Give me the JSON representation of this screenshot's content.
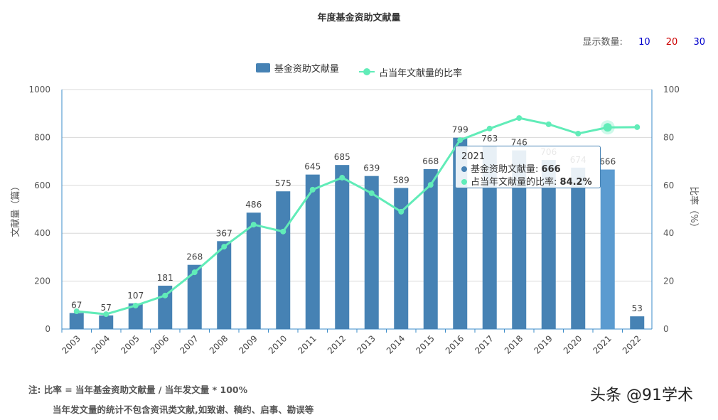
{
  "header": {
    "title": "年度基金资助文献量",
    "count_label": "显示数量:",
    "count_options": [
      {
        "label": "10",
        "color": "#0000cc"
      },
      {
        "label": "20",
        "color": "#cc0000"
      },
      {
        "label": "30",
        "color": "#0000cc"
      }
    ]
  },
  "chart_data": {
    "type": "bar",
    "title": "年度基金资助文献量",
    "categories": [
      "2003",
      "2004",
      "2005",
      "2006",
      "2007",
      "2008",
      "2009",
      "2010",
      "2011",
      "2012",
      "2013",
      "2014",
      "2015",
      "2016",
      "2017",
      "2018",
      "2019",
      "2020",
      "2021",
      "2022"
    ],
    "series": [
      {
        "name": "基金资助文献量",
        "type": "bar",
        "axis": "left",
        "color": "#4682b4",
        "values": [
          67,
          57,
          107,
          181,
          268,
          367,
          486,
          575,
          645,
          685,
          639,
          589,
          668,
          799,
          763,
          746,
          706,
          674,
          666,
          53
        ]
      },
      {
        "name": "占当年文献量的比率",
        "type": "line",
        "axis": "right",
        "color": "#61ecb8",
        "values": [
          7.4,
          6.2,
          9.8,
          14.0,
          23.7,
          34.4,
          43.6,
          40.7,
          58.2,
          63.2,
          56.7,
          49.0,
          60.2,
          78.9,
          83.7,
          88.1,
          85.5,
          81.6,
          84.2,
          84.3
        ]
      }
    ],
    "ylabel": "文献量（篇）",
    "ylim": [
      0,
      1000
    ],
    "yticks": [
      "0",
      "200",
      "400",
      "600",
      "800",
      "1000"
    ],
    "y2label": "比率（%）",
    "y2lim": [
      0,
      100
    ],
    "y2ticks": [
      "0",
      "20",
      "40",
      "60",
      "80",
      "100"
    ],
    "grid": true,
    "legend": "top-center"
  },
  "tooltip": {
    "year": "2021",
    "bar_label": "基金资助文献量:",
    "bar_value": "666",
    "line_label": "占当年文献量的比率:",
    "line_value": "84.2%"
  },
  "note": {
    "line1": "注:   比率 = 当年基金资助文献量 / 当年发文量 * 100%",
    "line2": "当年发文量的统计不包含资讯类文献,如致谢、稿约、启事、勘误等"
  },
  "watermark": "头条 @91学术"
}
